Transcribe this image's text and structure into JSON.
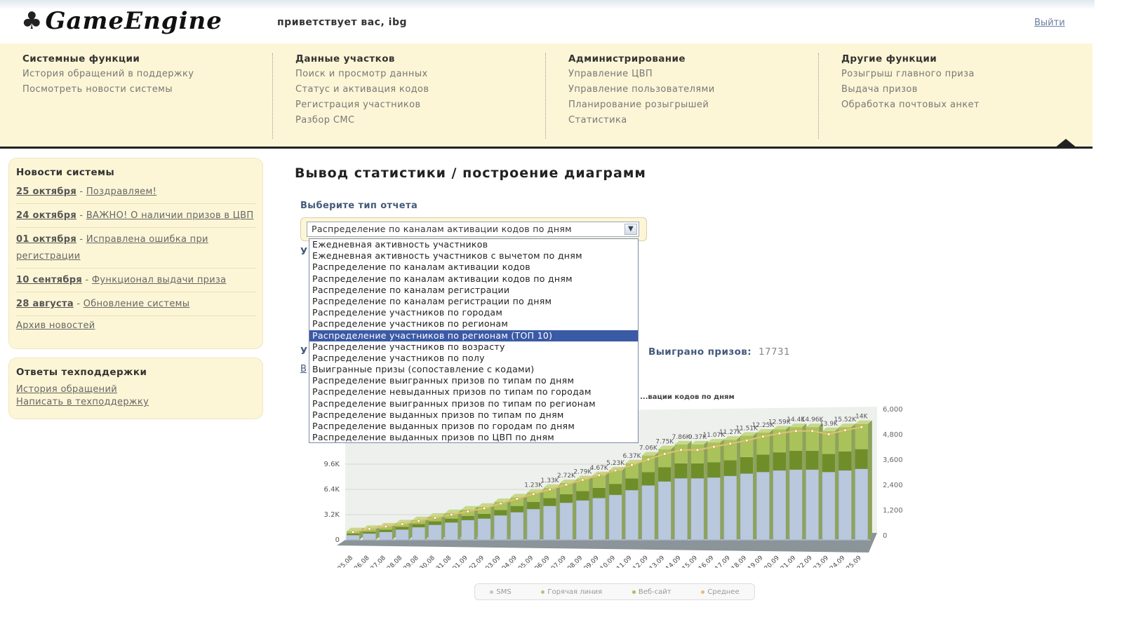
{
  "header": {
    "logo_text": "GameEngine",
    "welcome": "приветствует вас, ibg",
    "logout": "Выйти"
  },
  "nav": {
    "columns": [
      {
        "title": "Системные функции",
        "links": [
          "История обращений в поддержку",
          "Посмотреть новости системы"
        ]
      },
      {
        "title": "Данные участков",
        "links": [
          "Поиск и просмотр данных",
          "Статус и активация кодов",
          "Регистрация участников",
          "Разбор СМС"
        ]
      },
      {
        "title": "Администрирование",
        "links": [
          "Управление ЦВП",
          "Управление пользователями",
          "Планирование розыгрышей",
          "Статистика"
        ]
      },
      {
        "title": "Другие функции",
        "links": [
          "Розыгрыш главного приза",
          "Выдача призов",
          "Обработка почтовых анкет"
        ]
      }
    ]
  },
  "news": {
    "title": "Новости системы",
    "items": [
      {
        "date": "25 октября",
        "title": "Поздравляем!"
      },
      {
        "date": "24 октября",
        "title": "ВАЖНО! О наличии призов в ЦВП"
      },
      {
        "date": "01 октября",
        "title": "Исправлена ошибка при регистрации"
      },
      {
        "date": "10 сентября",
        "title": "Функционал выдачи приза"
      },
      {
        "date": "28 августа",
        "title": "Обновление системы"
      }
    ],
    "archive": "Архив новостей"
  },
  "support": {
    "title": "Ответы техподдержки",
    "links": [
      "История обращений",
      "Написать в техподдержку"
    ]
  },
  "main": {
    "page_title": "Вывод статистики / построение диаграмм",
    "report_label": "Выберите тип отчета",
    "selected_report": "Распределение по каналам активации кодов по дням",
    "options": [
      "Ежедневная активность участников",
      "Ежедневная активность участников с вычетом по дням",
      "Распределение по каналам активации кодов",
      "Распределение по каналам активации кодов по дням",
      "Распределение по каналам регистрации",
      "Распределение по каналам регистрации по дням",
      "Распределение участников по городам",
      "Распределение участников по регионам",
      "Распределение участников по регионам (ТОП 10)",
      "Распределение участников по возрасту",
      "Распределение участников по полу",
      "Выигранные призы (сопоставление с кодами)",
      "Распределение выигранных призов по типам по дням",
      "Распределение невыданных призов по типам по городам",
      "Распределение выигранных призов по типам по регионам",
      "Распределение выданных призов по типам по дням",
      "Распределение выданных призов по городам по дням",
      "Распределение выданных призов по ЦВП по дням"
    ],
    "highlighted_option_index": 8,
    "prizes_label": "Выиграно призов:",
    "prizes_value": "17731",
    "frag_letter_1": "У",
    "frag_letter_2": "У",
    "frag_letter_3": "В"
  },
  "chart_data": {
    "type": "bar",
    "title": "...вации кодов по дням",
    "categories": [
      "25.08",
      "26.08",
      "27.08",
      "28.08",
      "29.08",
      "30.08",
      "31.08",
      "01.09",
      "02.09",
      "03.09",
      "04.09",
      "05.09",
      "06.09",
      "07.09",
      "08.09",
      "09.09",
      "10.09",
      "11.09",
      "12.09",
      "13.09",
      "14.09",
      "15.09",
      "16.09",
      "17.09",
      "18.09",
      "19.09",
      "20.09",
      "21.09",
      "22.09",
      "23.09",
      "24.09",
      "25.09"
    ],
    "y_left_ticks": [
      "0",
      "3.2K",
      "6.4K",
      "9.6K"
    ],
    "y_right_ticks": [
      "0",
      "1,200",
      "2,400",
      "3,600",
      "4,800",
      "6,000"
    ],
    "ylim_left": [
      0,
      16000
    ],
    "ylim_right": [
      0,
      6000
    ],
    "series": [
      {
        "name": "SMS",
        "values": [
          600,
          800,
          1000,
          1300,
          1600,
          1900,
          2200,
          2500,
          2700,
          3100,
          3500,
          3900,
          4300,
          4700,
          5000,
          5300,
          5700,
          6300,
          6900,
          7400,
          7800,
          7800,
          7900,
          8100,
          8400,
          8600,
          8800,
          8900,
          8900,
          8600,
          8800,
          9000
        ]
      },
      {
        "name": "Горячая линия",
        "values": [
          200,
          250,
          300,
          350,
          400,
          450,
          500,
          550,
          600,
          700,
          800,
          900,
          1000,
          1100,
          1200,
          1300,
          1400,
          1500,
          1700,
          1800,
          1900,
          1900,
          1950,
          2000,
          2100,
          2200,
          2300,
          2400,
          2400,
          2300,
          2400,
          2500
        ]
      },
      {
        "name": "Веб-сайт",
        "values": [
          300,
          350,
          400,
          450,
          500,
          600,
          700,
          800,
          900,
          1000,
          1100,
          1200,
          1300,
          1400,
          1500,
          1600,
          1700,
          1900,
          2100,
          2300,
          2400,
          2400,
          2500,
          2600,
          2700,
          2800,
          2900,
          3000,
          3000,
          2900,
          3100,
          3200
        ]
      },
      {
        "name": "Среднее",
        "values": [
          1000,
          1400,
          1700,
          2000,
          2400,
          2800,
          3200,
          3600,
          4000,
          4600,
          5200,
          5800,
          6400,
          7000,
          7600,
          8200,
          8800,
          9500,
          10200,
          10900,
          11400,
          11400,
          11800,
          12200,
          12600,
          13100,
          13500,
          13800,
          13800,
          13400,
          13900,
          14300
        ]
      }
    ],
    "top_labels": [
      "1.23K",
      "1.33K",
      "2.72K",
      "2.79K",
      "4.67K",
      "5.23K",
      "6.37K",
      "7.06K",
      "7.75K",
      "7.86K",
      "9.37K",
      "11.07K",
      "11.27K",
      "11.51K",
      "12.25K",
      "12.59K",
      "14.4K",
      "14.96K",
      "13.9K",
      "15.52K",
      "14K"
    ],
    "legend": [
      "SMS",
      "Горячая линия",
      "Веб-сайт",
      "Среднее"
    ],
    "colors": {
      "sms": "#b9c8dd",
      "hotline": "#6f8e2a",
      "web": "#a9c25a",
      "avg": "#c9b78a",
      "floor": "#8a9499"
    }
  }
}
